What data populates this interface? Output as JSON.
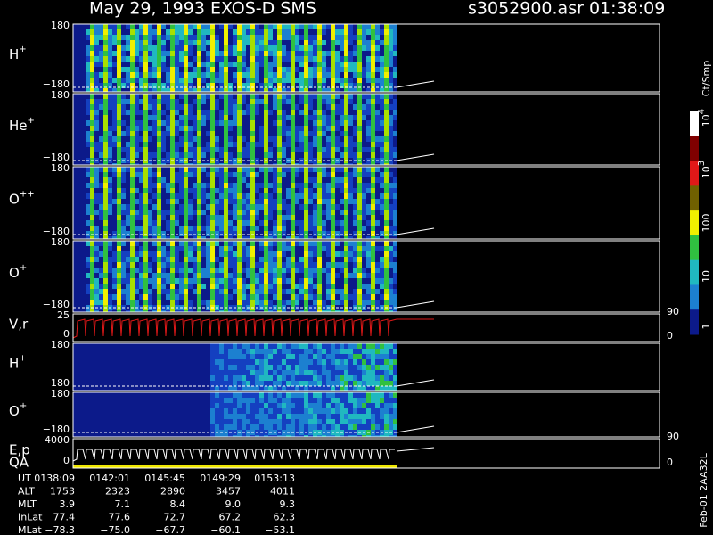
{
  "header": {
    "title": "May 29, 1993   EXOS-D SMS",
    "file": "s3052900.asr  01:38:09"
  },
  "panels": [
    {
      "label": {
        "base": "H",
        "sup": "+"
      },
      "ticks": [
        "180",
        "−180"
      ]
    },
    {
      "label": {
        "base": "He",
        "sup": "+"
      },
      "ticks": [
        "180",
        "−180"
      ]
    },
    {
      "label": {
        "base": "O",
        "sup": "++"
      },
      "ticks": [
        "180",
        "−180"
      ]
    },
    {
      "label": {
        "base": "O",
        "sup": "+"
      },
      "ticks": [
        "180",
        "−180"
      ]
    },
    {
      "label": {
        "base": "V,r",
        "sup": ""
      },
      "ticks": [
        "25",
        "0"
      ],
      "right_ticks": [
        "90",
        "0"
      ]
    },
    {
      "label": {
        "base": "H",
        "sup": "+"
      },
      "ticks": [
        "180",
        "−180"
      ]
    },
    {
      "label": {
        "base": "O",
        "sup": "+"
      },
      "ticks": [
        "180",
        "−180"
      ]
    },
    {
      "label": {
        "base": "E,p",
        "sup": ""
      },
      "label2": "QA",
      "ticks": [
        "4000",
        "0"
      ],
      "right_ticks": [
        "90",
        "0"
      ]
    }
  ],
  "colorbar": {
    "title": "Ct/Smp",
    "ticks": [
      {
        "base": "10",
        "sup": "4"
      },
      {
        "base": "10",
        "sup": "3"
      },
      {
        "base": "100",
        "sup": ""
      },
      {
        "base": "10",
        "sup": ""
      },
      {
        "base": "1",
        "sup": ""
      }
    ]
  },
  "table": {
    "rows": [
      [
        "UT",
        "0138:09",
        "0142:01",
        "0145:45",
        "0149:29",
        "0153:13"
      ],
      [
        "ALT",
        "1753",
        "2323",
        "2890",
        "3457",
        "4011"
      ],
      [
        "MLT",
        "3.9",
        "7.1",
        "8.4",
        "9.0",
        "9.3"
      ],
      [
        "InLat",
        "77.4",
        "77.6",
        "72.7",
        "67.2",
        "62.3"
      ],
      [
        "MLat",
        "−78.3",
        "−75.0",
        "−67.7",
        "−60.1",
        "−53.1"
      ]
    ]
  },
  "footer": "Feb-01 2AA32L"
}
